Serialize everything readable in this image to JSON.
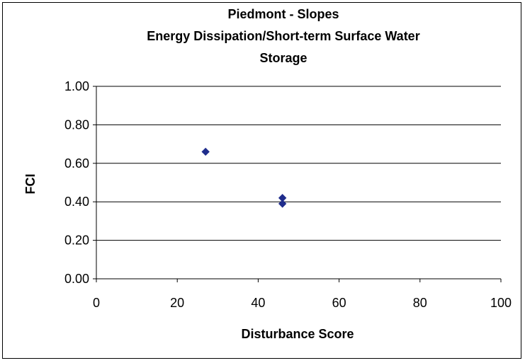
{
  "chart_data": {
    "type": "scatter",
    "title_lines": [
      "Piedmont - Slopes",
      "Energy Dissipation/Short-term Surface Water",
      "Storage"
    ],
    "xlabel": "Disturbance Score",
    "ylabel": "FCI",
    "xlim": [
      0,
      100
    ],
    "ylim": [
      0,
      1
    ],
    "x_ticks": [
      "0",
      "20",
      "40",
      "60",
      "80",
      "100"
    ],
    "y_ticks": [
      "0.00",
      "0.20",
      "0.40",
      "0.60",
      "0.80",
      "1.00"
    ],
    "grid": "horizontal",
    "marker": "diamond",
    "marker_color": "#1f2d8c",
    "series": [
      {
        "points": [
          {
            "x": 27,
            "y": 0.66
          },
          {
            "x": 46,
            "y": 0.42
          },
          {
            "x": 46,
            "y": 0.39
          }
        ]
      }
    ]
  }
}
